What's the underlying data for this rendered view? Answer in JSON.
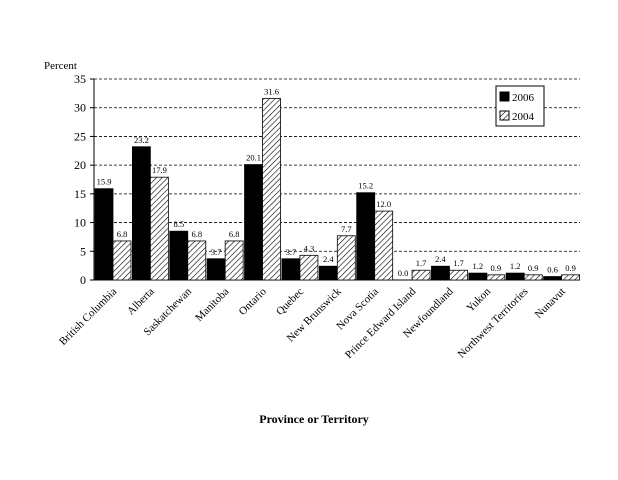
{
  "chart_data": {
    "type": "bar",
    "ylabel": "Percent",
    "xlabel": "Province or Territory",
    "ylim": [
      0,
      35
    ],
    "yticks": [
      0,
      5,
      10,
      15,
      20,
      25,
      30,
      35
    ],
    "grid": true,
    "legend_position": "top-right",
    "categories": [
      "British Columbia",
      "Alberta",
      "Saskatchewan",
      "Manitoba",
      "Ontario",
      "Quebec",
      "New Brunswick",
      "Nova Scotia",
      "Prince Edward Island",
      "Newfoundland",
      "Yukon",
      "Northwest Territories",
      "Nunavut"
    ],
    "series": [
      {
        "name": "2006",
        "fill": "solid",
        "color": "#000000",
        "values": [
          15.9,
          23.2,
          8.5,
          3.7,
          20.1,
          3.7,
          2.4,
          15.2,
          0.0,
          2.4,
          1.2,
          1.2,
          0.6
        ],
        "labels": [
          "15.9",
          "23.2",
          "8.5",
          "3.7",
          "20.1",
          "3.7",
          "2.4",
          "15.2",
          "0.0",
          "2.4",
          "1.2",
          "1.2",
          "0.6"
        ]
      },
      {
        "name": "2004",
        "fill": "hatched",
        "color": "#ffffff",
        "values": [
          6.8,
          17.9,
          6.8,
          6.8,
          31.6,
          4.3,
          7.7,
          12.0,
          1.7,
          1.7,
          0.9,
          0.9,
          0.9
        ],
        "labels": [
          "6.8",
          "17.9",
          "6.8",
          "6.8",
          "31.6",
          "4.3",
          "7.7",
          "12.0",
          "1.7",
          "1.7",
          "0.9",
          "0.9",
          "0.9"
        ]
      }
    ]
  }
}
